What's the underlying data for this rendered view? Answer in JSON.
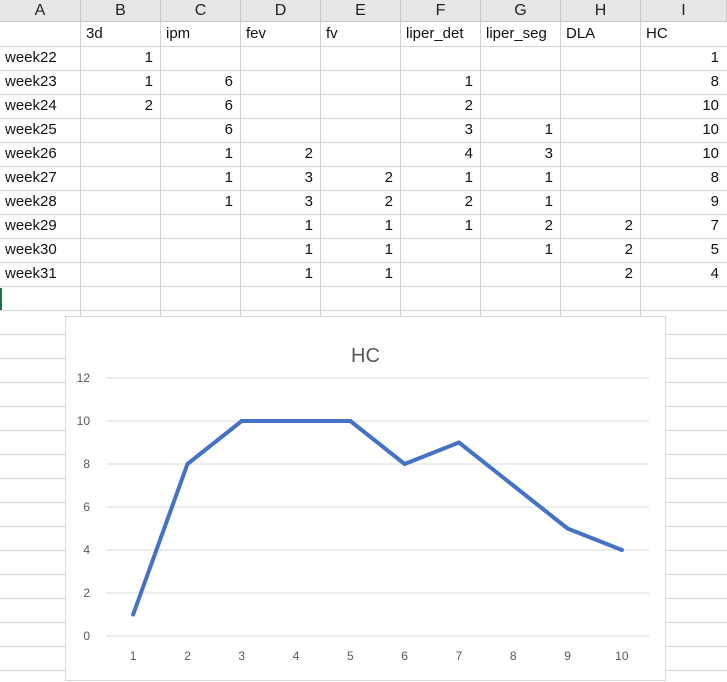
{
  "sheet": {
    "columns": [
      "A",
      "B",
      "C",
      "D",
      "E",
      "F",
      "G",
      "H",
      "I"
    ],
    "header_row": [
      "",
      "3d",
      "ipm",
      "fev",
      "fv",
      "liper_det",
      "liper_seg",
      "DLA",
      "HC"
    ],
    "rows": [
      [
        "week22",
        "1",
        "",
        "",
        "",
        "",
        "",
        "",
        "1"
      ],
      [
        "week23",
        "1",
        "6",
        "",
        "",
        "1",
        "",
        "",
        "8"
      ],
      [
        "week24",
        "2",
        "6",
        "",
        "",
        "2",
        "",
        "",
        "10"
      ],
      [
        "week25",
        "",
        "6",
        "",
        "",
        "3",
        "1",
        "",
        "10"
      ],
      [
        "week26",
        "",
        "1",
        "2",
        "",
        "4",
        "3",
        "",
        "10"
      ],
      [
        "week27",
        "",
        "1",
        "3",
        "2",
        "1",
        "1",
        "",
        "8"
      ],
      [
        "week28",
        "",
        "1",
        "3",
        "2",
        "2",
        "1",
        "",
        "9"
      ],
      [
        "week29",
        "",
        "",
        "1",
        "1",
        "1",
        "2",
        "2",
        "7"
      ],
      [
        "week30",
        "",
        "",
        "1",
        "1",
        "",
        "1",
        "2",
        "5"
      ],
      [
        "week31",
        "",
        "",
        "1",
        "1",
        "",
        "",
        "2",
        "4"
      ]
    ]
  },
  "chart_data": {
    "type": "line",
    "title": "HC",
    "x": [
      1,
      2,
      3,
      4,
      5,
      6,
      7,
      8,
      9,
      10
    ],
    "series": [
      {
        "values": [
          1,
          8,
          10,
          10,
          10,
          8,
          9,
          7,
          5,
          4
        ],
        "color": "#4472c4"
      }
    ],
    "ylim": [
      0,
      12
    ],
    "yticks": [
      0,
      2,
      4,
      6,
      8,
      10,
      12
    ],
    "grid": true,
    "legend": "none"
  }
}
